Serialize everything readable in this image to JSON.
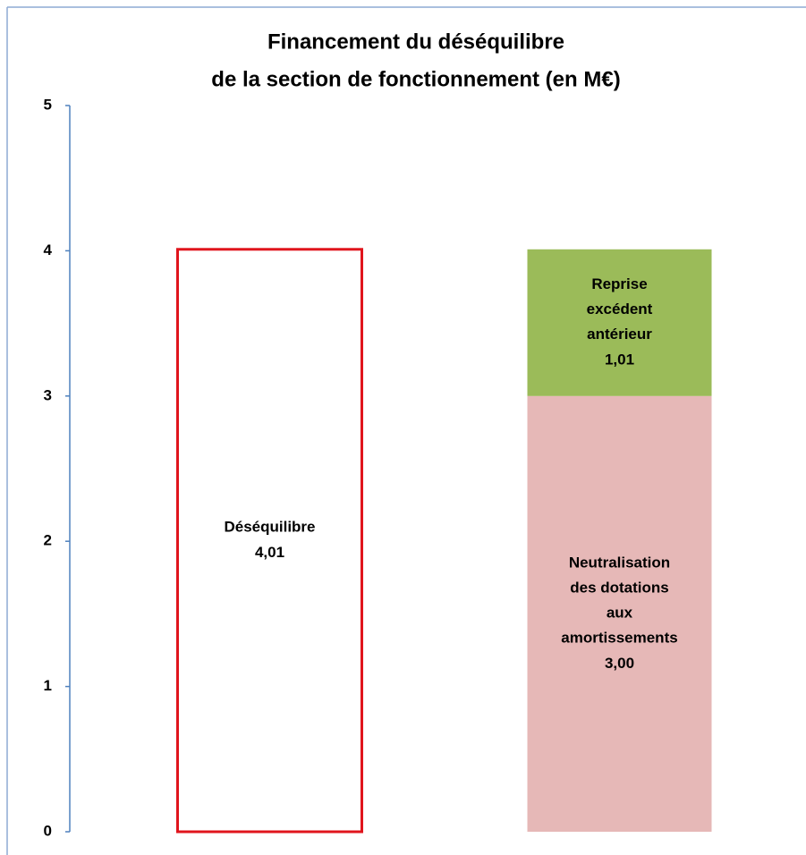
{
  "chart_data": {
    "type": "stacked_bar",
    "title": [
      "Financement du déséquilibre",
      "de la section de fonctionnement (en M€)"
    ],
    "categories": [
      null,
      null
    ],
    "series": [
      {
        "name": "Déséquilibre",
        "color": "#e0141c",
        "outline": true,
        "values": [
          4.01,
          null
        ],
        "value_labels": [
          "4,01",
          null
        ]
      },
      {
        "name": "Neutralisation des dotations aux amortissements",
        "color": "#e6b8b7",
        "values": [
          null,
          3.0
        ],
        "value_labels": [
          null,
          "3,00"
        ]
      },
      {
        "name": "Reprise excédent antérieur",
        "color": "#9bbb59",
        "values": [
          null,
          1.01
        ],
        "value_labels": [
          null,
          "1,01"
        ]
      }
    ],
    "ylim": [
      0,
      5
    ],
    "yticks": [
      0,
      1,
      2,
      3,
      4,
      5
    ],
    "grid": false
  }
}
